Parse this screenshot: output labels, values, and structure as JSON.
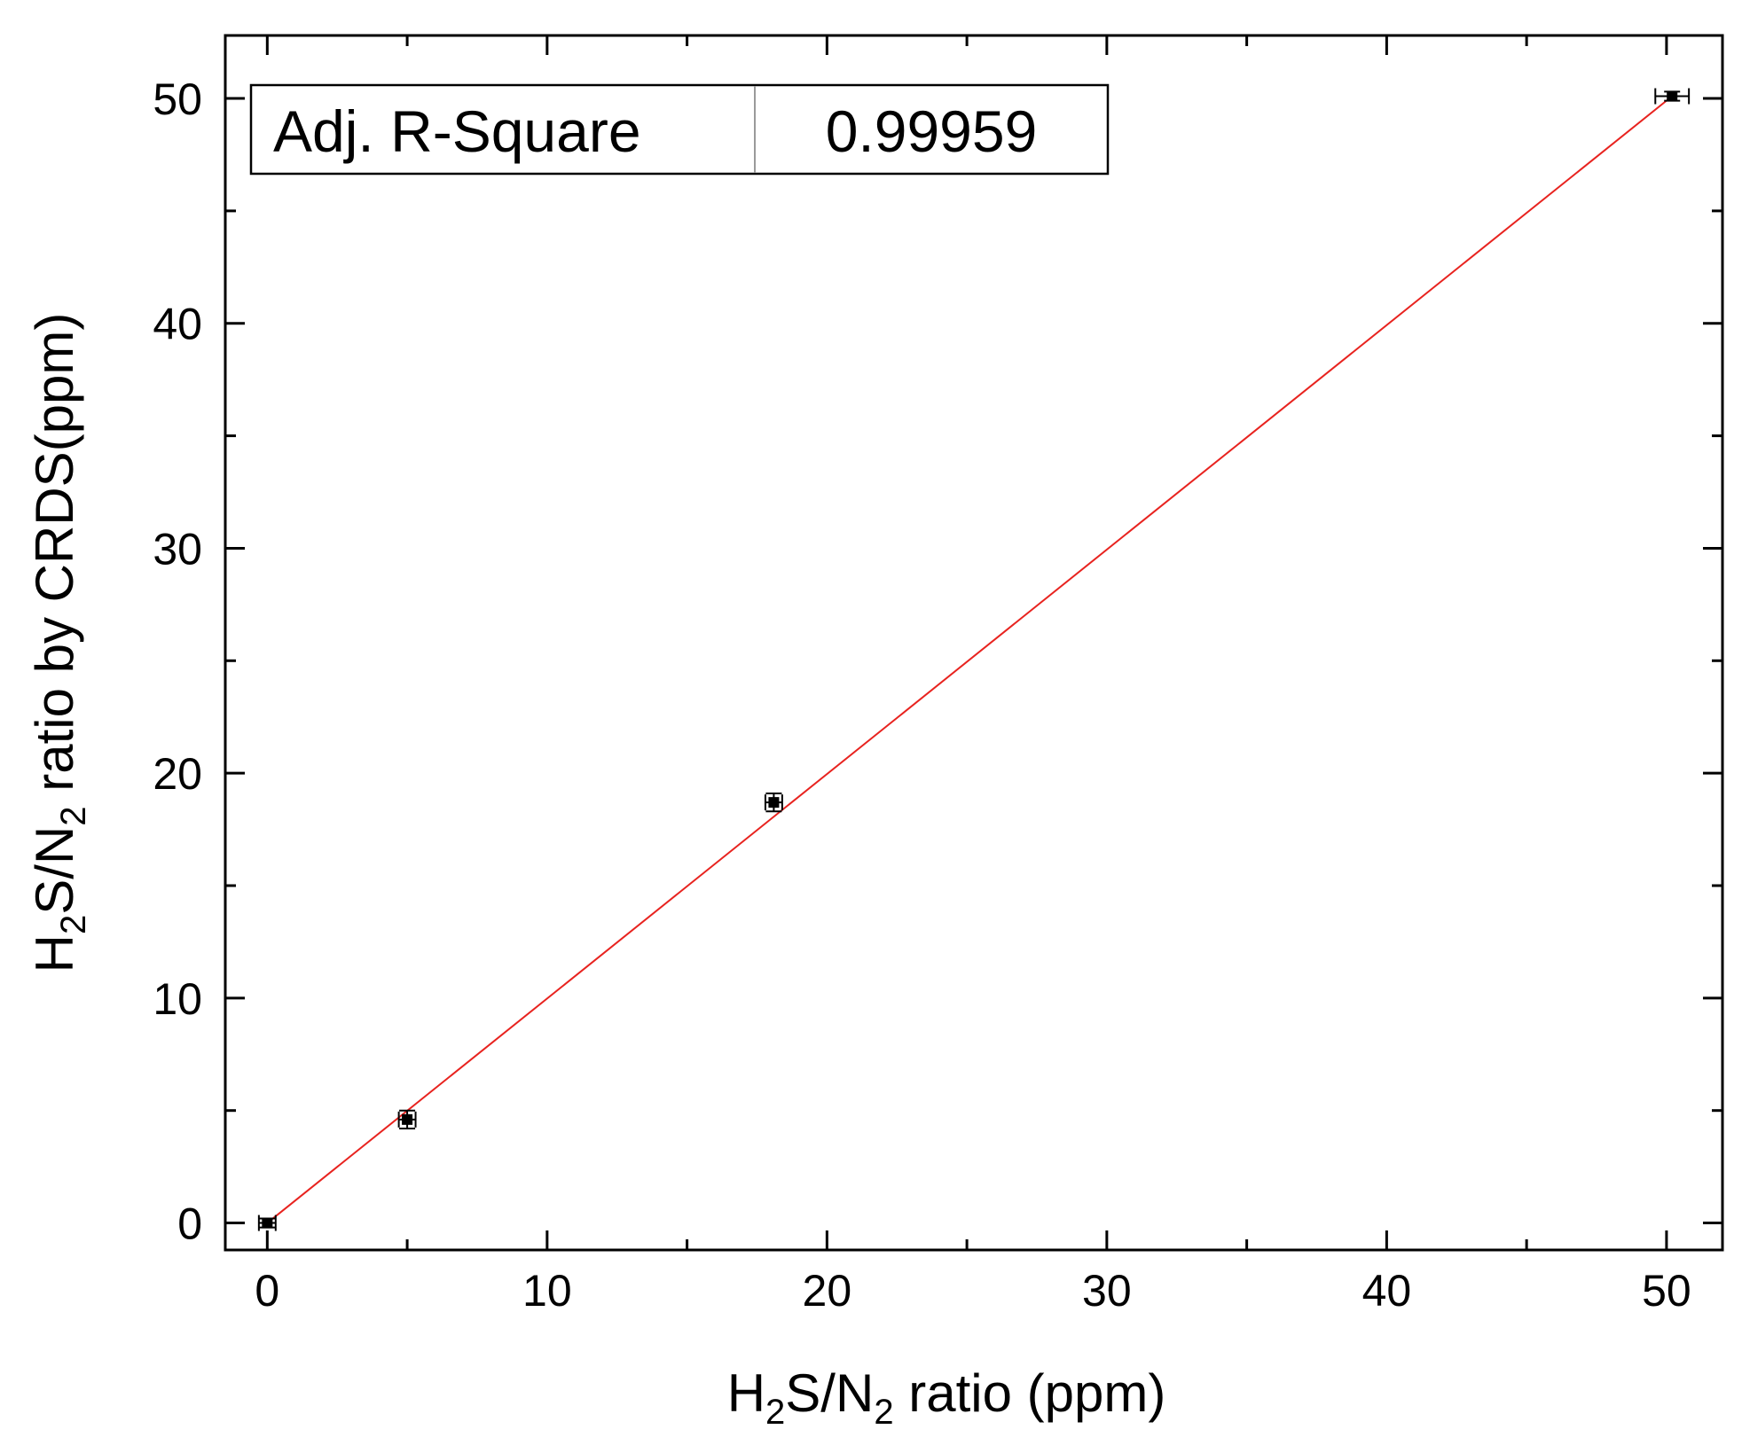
{
  "chart_data": {
    "type": "scatter",
    "xlabel": {
      "parts": [
        {
          "t": "H"
        },
        {
          "t": "2",
          "sub": true
        },
        {
          "t": "S/N"
        },
        {
          "t": "2",
          "sub": true
        },
        {
          "t": " ratio (ppm)"
        }
      ]
    },
    "ylabel": {
      "parts": [
        {
          "t": "H"
        },
        {
          "t": "2",
          "sub": true
        },
        {
          "t": "S/N"
        },
        {
          "t": "2",
          "sub": true
        },
        {
          "t": " ratio  by CRDS(ppm)"
        }
      ]
    },
    "xlim": [
      -1.5,
      52
    ],
    "ylim": [
      -1.2,
      52.8
    ],
    "x_major_ticks": [
      0,
      10,
      20,
      30,
      40,
      50
    ],
    "y_major_ticks": [
      0,
      10,
      20,
      30,
      40,
      50
    ],
    "x_tick_labels": [
      "0",
      "10",
      "20",
      "30",
      "40",
      "50"
    ],
    "y_tick_labels": [
      "0",
      "10",
      "20",
      "30",
      "40",
      "50"
    ],
    "x_minor_ticks": [
      5,
      15,
      25,
      35,
      45
    ],
    "y_minor_ticks": [
      5,
      15,
      25,
      35,
      45
    ],
    "grid": false,
    "series": [
      {
        "points": [
          {
            "x": 0,
            "y": 0,
            "xerr": 0.3,
            "yerr": 0.2
          },
          {
            "x": 5.0,
            "y": 4.6,
            "xerr": 0.3,
            "yerr": 0.4
          },
          {
            "x": 18.1,
            "y": 18.7,
            "xerr": 0.3,
            "yerr": 0.4
          },
          {
            "x": 50.2,
            "y": 50.1,
            "xerr": 0.6,
            "yerr": 0.2
          }
        ]
      }
    ],
    "fit_line": {
      "x": [
        0,
        50.2
      ],
      "y": [
        0,
        50.1
      ],
      "color": "#e8231f"
    },
    "stats_box": {
      "label": "Adj. R-Square",
      "value": "0.99959",
      "placement": "top-left"
    },
    "colors": {
      "axes": "#000000",
      "points": "#000000",
      "fit": "#e8231f"
    }
  }
}
